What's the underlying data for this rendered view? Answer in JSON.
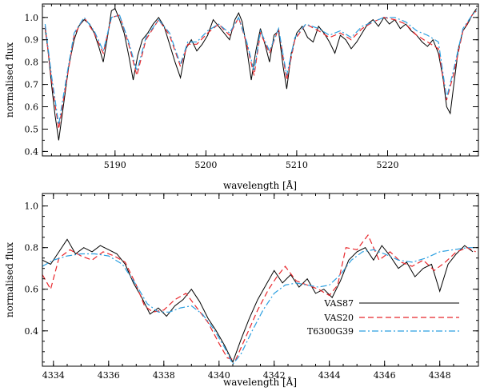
{
  "chart_data": [
    {
      "type": "line",
      "xlabel": "wavelength [Å]",
      "ylabel": "normalised flux",
      "xlim": [
        5182,
        5230
      ],
      "ylim": [
        0.38,
        1.06
      ],
      "xticks": [
        "5190",
        "5200",
        "5210",
        "5220"
      ],
      "xtick_values": [
        5190,
        5200,
        5210,
        5220
      ],
      "yticks": [
        "0.4",
        "0.5",
        "0.6",
        "0.7",
        "0.8",
        "0.9",
        "1.0"
      ],
      "ytick_values": [
        0.4,
        0.5,
        0.6,
        0.7,
        0.8,
        0.9,
        1.0
      ],
      "grid": false,
      "series": [
        {
          "name": "VAS87",
          "style": "solid",
          "color": "#000000",
          "x": [
            5182.3,
            5182.6,
            5183.0,
            5183.4,
            5183.8,
            5184.3,
            5184.9,
            5185.5,
            5186.0,
            5186.6,
            5187.2,
            5187.7,
            5188.2,
            5188.7,
            5189.2,
            5189.6,
            5190.0,
            5190.5,
            5191.0,
            5191.5,
            5192.0,
            5192.5,
            5193.0,
            5193.6,
            5194.2,
            5194.8,
            5195.4,
            5196.0,
            5196.6,
            5197.2,
            5197.8,
            5198.4,
            5199.0,
            5199.6,
            5200.2,
            5200.8,
            5201.4,
            5202.0,
            5202.6,
            5203.2,
            5203.6,
            5204.0,
            5204.5,
            5205.0,
            5205.5,
            5206.0,
            5206.5,
            5207.0,
            5207.5,
            5208.0,
            5208.5,
            5208.9,
            5209.4,
            5210.0,
            5210.6,
            5211.2,
            5211.8,
            5212.4,
            5213.0,
            5213.6,
            5214.2,
            5214.8,
            5215.4,
            5216.0,
            5216.6,
            5217.2,
            5217.8,
            5218.4,
            5219.0,
            5219.6,
            5220.2,
            5220.8,
            5221.4,
            5222.0,
            5222.6,
            5223.2,
            5223.8,
            5224.4,
            5225.0,
            5225.6,
            5226.1,
            5226.5,
            5226.9,
            5227.3,
            5227.8,
            5228.3,
            5228.8,
            5229.3,
            5229.8
          ],
          "y": [
            0.95,
            0.86,
            0.7,
            0.56,
            0.45,
            0.6,
            0.78,
            0.9,
            0.96,
            0.99,
            0.97,
            0.93,
            0.87,
            0.8,
            0.92,
            1.03,
            1.04,
            0.99,
            0.93,
            0.83,
            0.72,
            0.83,
            0.9,
            0.93,
            0.97,
            1.0,
            0.96,
            0.88,
            0.8,
            0.73,
            0.86,
            0.9,
            0.85,
            0.88,
            0.92,
            0.99,
            0.96,
            0.93,
            0.9,
            0.99,
            1.02,
            0.98,
            0.86,
            0.72,
            0.85,
            0.95,
            0.88,
            0.8,
            0.92,
            0.94,
            0.78,
            0.68,
            0.84,
            0.93,
            0.96,
            0.91,
            0.89,
            0.96,
            0.93,
            0.89,
            0.84,
            0.92,
            0.9,
            0.86,
            0.89,
            0.93,
            0.97,
            0.99,
            0.96,
            1.0,
            0.97,
            0.99,
            0.95,
            0.97,
            0.94,
            0.92,
            0.89,
            0.87,
            0.9,
            0.84,
            0.73,
            0.6,
            0.57,
            0.7,
            0.86,
            0.94,
            0.97,
            1.01,
            1.04
          ]
        },
        {
          "name": "VAS20",
          "style": "dashed",
          "color": "#e8262b",
          "x": [
            5182.3,
            5183.0,
            5183.8,
            5184.6,
            5185.5,
            5186.6,
            5187.7,
            5188.7,
            5189.6,
            5190.5,
            5191.5,
            5192.4,
            5193.4,
            5194.8,
            5196.0,
            5197.2,
            5198.0,
            5199.0,
            5200.2,
            5201.4,
            5202.6,
            5203.6,
            5204.5,
            5205.3,
            5206.0,
            5207.0,
            5208.0,
            5208.9,
            5209.8,
            5211.0,
            5212.4,
            5213.6,
            5214.8,
            5216.0,
            5217.2,
            5218.4,
            5219.6,
            5220.8,
            5222.0,
            5223.2,
            5224.4,
            5225.6,
            5226.5,
            5227.3,
            5228.3,
            5229.3,
            5229.8
          ],
          "y": [
            0.96,
            0.72,
            0.5,
            0.7,
            0.92,
            1.0,
            0.93,
            0.84,
            1.0,
            1.01,
            0.88,
            0.74,
            0.9,
            0.99,
            0.92,
            0.78,
            0.88,
            0.88,
            0.93,
            0.97,
            0.92,
            1.0,
            0.88,
            0.74,
            0.93,
            0.84,
            0.95,
            0.72,
            0.9,
            0.97,
            0.94,
            0.91,
            0.93,
            0.9,
            0.95,
            0.98,
            1.0,
            0.99,
            0.97,
            0.92,
            0.89,
            0.86,
            0.63,
            0.75,
            0.94,
            1.01,
            1.03
          ]
        },
        {
          "name": "T6300G39",
          "style": "dashdot",
          "color": "#2b9fe0",
          "x": [
            5182.3,
            5183.0,
            5183.8,
            5184.6,
            5185.5,
            5186.6,
            5187.7,
            5188.7,
            5189.6,
            5190.5,
            5191.5,
            5192.4,
            5193.4,
            5194.8,
            5196.0,
            5197.2,
            5198.0,
            5199.0,
            5200.2,
            5201.4,
            5202.6,
            5203.6,
            5204.5,
            5205.3,
            5206.0,
            5207.0,
            5208.0,
            5208.9,
            5209.8,
            5211.0,
            5212.4,
            5213.6,
            5214.8,
            5216.0,
            5217.2,
            5218.4,
            5219.6,
            5220.8,
            5222.0,
            5223.2,
            5224.4,
            5225.6,
            5226.5,
            5227.3,
            5228.3,
            5229.3,
            5229.8
          ],
          "y": [
            0.97,
            0.74,
            0.52,
            0.72,
            0.93,
            1.0,
            0.94,
            0.85,
            1.0,
            1.01,
            0.89,
            0.76,
            0.91,
            0.99,
            0.93,
            0.79,
            0.89,
            0.89,
            0.94,
            0.97,
            0.93,
            1.0,
            0.89,
            0.76,
            0.94,
            0.85,
            0.95,
            0.74,
            0.91,
            0.97,
            0.95,
            0.92,
            0.94,
            0.91,
            0.96,
            0.98,
            1.0,
            1.0,
            0.98,
            0.94,
            0.92,
            0.89,
            0.64,
            0.77,
            0.95,
            1.01,
            1.03
          ]
        }
      ]
    },
    {
      "type": "line",
      "xlabel": "wavelength [Å]",
      "ylabel": "normalised flux",
      "xlim": [
        4333.6,
        4349.4
      ],
      "ylim": [
        0.23,
        1.06
      ],
      "xticks": [
        "4334",
        "4336",
        "4338",
        "4340",
        "4342",
        "4344",
        "4346",
        "4348"
      ],
      "xtick_values": [
        4334,
        4336,
        4338,
        4340,
        4342,
        4344,
        4346,
        4348
      ],
      "yticks": [
        "0.4",
        "0.6",
        "0.8",
        "1.0"
      ],
      "ytick_values": [
        0.4,
        0.6,
        0.8,
        1.0
      ],
      "grid": false,
      "legend_position": "bottom-right",
      "series": [
        {
          "name": "VAS87",
          "style": "solid",
          "color": "#000000",
          "x": [
            4333.6,
            4333.9,
            4334.2,
            4334.5,
            4334.8,
            4335.1,
            4335.4,
            4335.7,
            4336.0,
            4336.3,
            4336.6,
            4336.9,
            4337.2,
            4337.5,
            4337.8,
            4338.1,
            4338.4,
            4338.7,
            4339.0,
            4339.3,
            4339.6,
            4339.9,
            4340.2,
            4340.5,
            4340.8,
            4341.1,
            4341.4,
            4341.7,
            4342.0,
            4342.3,
            4342.6,
            4342.9,
            4343.2,
            4343.5,
            4343.8,
            4344.1,
            4344.4,
            4344.7,
            4345.0,
            4345.3,
            4345.6,
            4345.9,
            4346.2,
            4346.5,
            4346.8,
            4347.1,
            4347.4,
            4347.7,
            4348.0,
            4348.3,
            4348.6,
            4348.9,
            4349.2
          ],
          "y": [
            0.74,
            0.72,
            0.78,
            0.84,
            0.77,
            0.8,
            0.78,
            0.81,
            0.79,
            0.77,
            0.72,
            0.63,
            0.56,
            0.48,
            0.51,
            0.47,
            0.52,
            0.55,
            0.6,
            0.54,
            0.46,
            0.4,
            0.33,
            0.25,
            0.36,
            0.46,
            0.55,
            0.62,
            0.69,
            0.63,
            0.67,
            0.61,
            0.65,
            0.58,
            0.6,
            0.56,
            0.64,
            0.74,
            0.78,
            0.8,
            0.74,
            0.81,
            0.76,
            0.7,
            0.73,
            0.66,
            0.7,
            0.72,
            0.59,
            0.72,
            0.77,
            0.81,
            0.78
          ]
        },
        {
          "name": "VAS20",
          "style": "dashed",
          "color": "#e8262b",
          "x": [
            4333.6,
            4333.9,
            4334.2,
            4334.6,
            4335.0,
            4335.4,
            4335.8,
            4336.2,
            4336.6,
            4337.0,
            4337.3,
            4337.6,
            4338.0,
            4338.4,
            4338.8,
            4339.2,
            4339.6,
            4340.0,
            4340.3,
            4340.6,
            4341.0,
            4341.4,
            4341.8,
            4342.1,
            4342.4,
            4342.8,
            4343.2,
            4343.6,
            4344.0,
            4344.3,
            4344.6,
            4345.0,
            4345.4,
            4345.8,
            4346.2,
            4346.6,
            4347.0,
            4347.4,
            4347.8,
            4348.2,
            4348.6,
            4349.0,
            4349.3
          ],
          "y": [
            0.67,
            0.6,
            0.75,
            0.79,
            0.76,
            0.74,
            0.78,
            0.76,
            0.73,
            0.62,
            0.52,
            0.49,
            0.5,
            0.55,
            0.58,
            0.51,
            0.44,
            0.34,
            0.27,
            0.26,
            0.38,
            0.5,
            0.6,
            0.66,
            0.71,
            0.64,
            0.62,
            0.6,
            0.57,
            0.62,
            0.8,
            0.79,
            0.86,
            0.74,
            0.78,
            0.73,
            0.71,
            0.74,
            0.69,
            0.73,
            0.78,
            0.8,
            0.78
          ]
        },
        {
          "name": "T6300G39",
          "style": "dashdot",
          "color": "#2b9fe0",
          "x": [
            4333.6,
            4334.0,
            4334.5,
            4335.0,
            4335.5,
            4336.0,
            4336.5,
            4337.0,
            4337.4,
            4337.8,
            4338.2,
            4338.6,
            4339.0,
            4339.4,
            4339.8,
            4340.2,
            4340.5,
            4340.8,
            4341.2,
            4341.6,
            4342.0,
            4342.4,
            4342.8,
            4343.2,
            4343.6,
            4344.0,
            4344.4,
            4344.8,
            4345.2,
            4345.6,
            4346.0,
            4346.5,
            4347.0,
            4347.5,
            4348.0,
            4348.5,
            4349.0,
            4349.3
          ],
          "y": [
            0.71,
            0.74,
            0.76,
            0.77,
            0.77,
            0.76,
            0.72,
            0.62,
            0.53,
            0.49,
            0.49,
            0.51,
            0.52,
            0.48,
            0.41,
            0.32,
            0.24,
            0.29,
            0.4,
            0.5,
            0.58,
            0.62,
            0.63,
            0.62,
            0.61,
            0.62,
            0.67,
            0.74,
            0.78,
            0.79,
            0.77,
            0.74,
            0.73,
            0.75,
            0.78,
            0.79,
            0.8,
            0.8
          ]
        }
      ]
    }
  ]
}
